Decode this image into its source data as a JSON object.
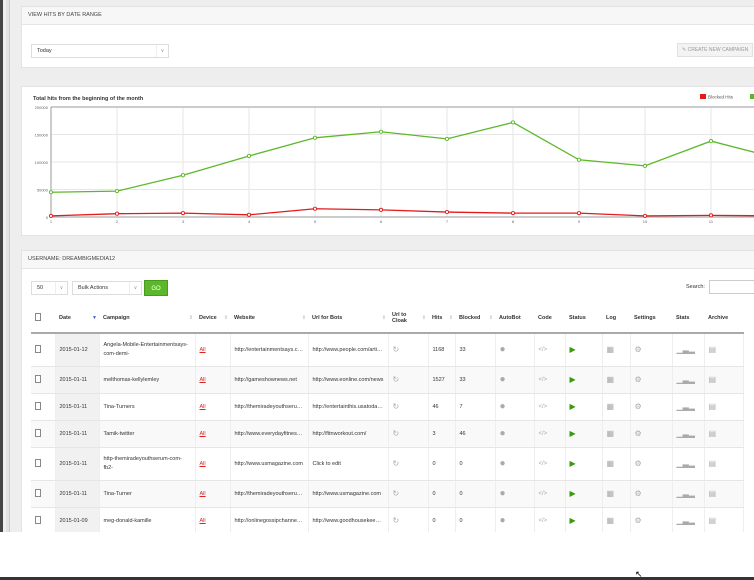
{
  "date_panel": {
    "title": "VIEW HITS BY DATE RANGE",
    "range_select": "Today",
    "create_button": "CREATE NEW CAMPAIGN"
  },
  "chart_data": {
    "type": "line",
    "title": "Total hits from the beginning of the month",
    "x": [
      1,
      2,
      3,
      4,
      5,
      6,
      7,
      8,
      9,
      10,
      11,
      12
    ],
    "x_tick_labels": [
      "1",
      "2",
      "3",
      "4",
      "5",
      "6",
      "7",
      "8",
      "9",
      "10",
      "11"
    ],
    "y_tick_labels": [
      "0",
      "50000",
      "100000",
      "150000",
      "200000"
    ],
    "ylim": [
      0,
      200000
    ],
    "grid": true,
    "legend_position": "top-right",
    "series": [
      {
        "name": "Blocked Hits",
        "color": "#e31b1b",
        "values": [
          2000,
          6000,
          7000,
          4000,
          15000,
          13000,
          9000,
          7000,
          7000,
          2000,
          3000,
          2000
        ]
      },
      {
        "name": "Valid Hits",
        "color": "#5cb82a",
        "values": [
          45000,
          47000,
          76000,
          111000,
          144000,
          155000,
          142000,
          172000,
          104000,
          93000,
          138000,
          107000
        ]
      }
    ]
  },
  "table_panel": {
    "title": "USERNAME: DREAMBIGMEDIA12",
    "page_size": "50",
    "bulk_actions": "Bulk Actions",
    "go_label": "GO",
    "search_label": "Search:",
    "columns": [
      "Date",
      "Campaign",
      "Device",
      "Website",
      "Url for Bots",
      "Url to Cloak",
      "Hits",
      "Blocked",
      "AutoBot",
      "Code",
      "Status",
      "Log",
      "Settings",
      "Stats",
      "Archive"
    ],
    "rows": [
      {
        "date": "2015-01-12",
        "campaign": "Angela-Mobile-Entertainmentsays-com-demi-",
        "device": "All",
        "website": "http://entertainmentsays.com",
        "bots": "http://www.people.com/article",
        "hits": "1168",
        "blocked": "33"
      },
      {
        "date": "2015-01-11",
        "campaign": "melthomas-kellylemley",
        "device": "All",
        "website": "http://gameshownews.net",
        "bots": "http://www.eonline.com/news",
        "hits": "1527",
        "blocked": "33"
      },
      {
        "date": "2015-01-11",
        "campaign": "Tina-Turners",
        "device": "All",
        "website": "http://themiradeyouthserum.com",
        "bots": "http://entertainthis.usatoday.com",
        "hits": "46",
        "blocked": "7"
      },
      {
        "date": "2015-01-11",
        "campaign": "Tamik-twitter",
        "device": "All",
        "website": "http://www.everydayfitness.com",
        "bots": "http://fitnworkout.com/",
        "hits": "3",
        "blocked": "46"
      },
      {
        "date": "2015-01-11",
        "campaign": "http-themiradeyouthserum-com-fb2-",
        "device": "All",
        "website": "http://www.usmagazine.com",
        "bots": "Click to edit",
        "hits": "0",
        "blocked": "0"
      },
      {
        "date": "2015-01-11",
        "campaign": "Tina-Turner",
        "device": "All",
        "website": "http://themiradeyouthserum.com",
        "bots": "http://www.usmagazine.com",
        "hits": "0",
        "blocked": "0"
      },
      {
        "date": "2015-01-09",
        "campaign": "meg-donald-kamille",
        "device": "All",
        "website": "http://onlinegossipchannel.com",
        "bots": "http://www.goodhousekeeping.com",
        "hits": "0",
        "blocked": "0"
      }
    ]
  }
}
